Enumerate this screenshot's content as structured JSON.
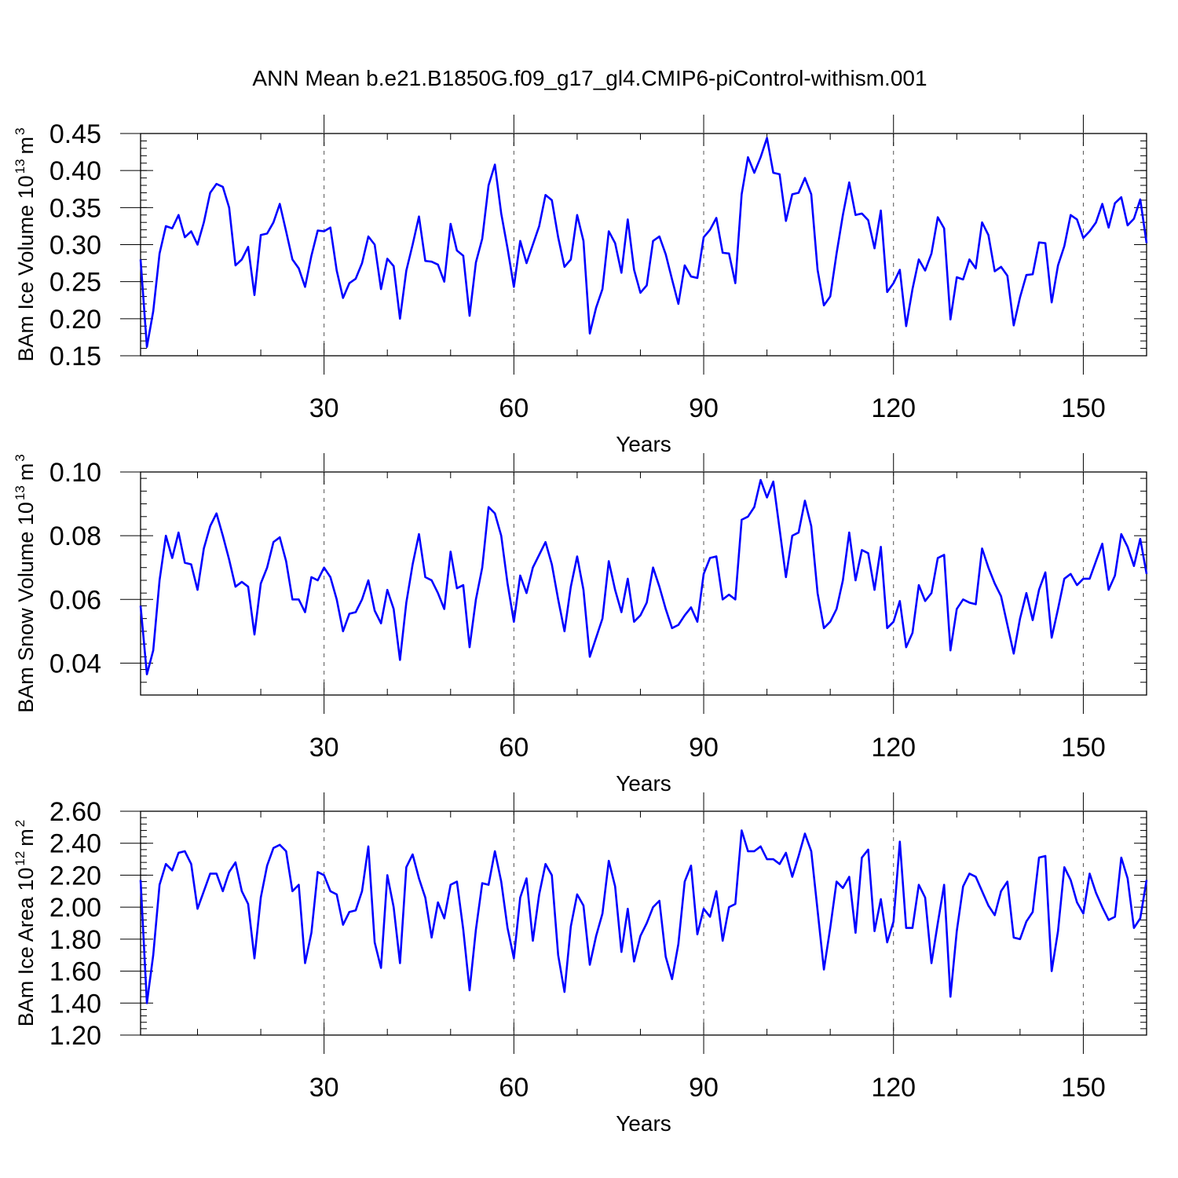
{
  "figure": {
    "title": "ANN Mean b.e21.B1850G.f09_g17_gl4.CMIP6-piControl-withism.001",
    "line_color": "#0000ff"
  },
  "chart_data": [
    {
      "type": "line",
      "title": "",
      "xlabel": "Years",
      "ylabel": "BAm Ice Volume 10",
      "ylabel_exp": "13",
      "ylabel_unit": "m",
      "ylabel_unit_exp": "3",
      "xlim": [
        1,
        160
      ],
      "ylim": [
        0.15,
        0.45
      ],
      "xticks": [
        30,
        60,
        90,
        120,
        150
      ],
      "xtick_labels": [
        "30",
        "60",
        "90",
        "120",
        "150"
      ],
      "yticks": [
        0.15,
        0.2,
        0.25,
        0.3,
        0.35,
        0.4,
        0.45
      ],
      "ytick_labels": [
        "0.15",
        "0.20",
        "0.25",
        "0.30",
        "0.35",
        "0.40",
        "0.45"
      ],
      "grid": "dashed vertical at x ticks",
      "series": [
        {
          "color": "#0000ff",
          "values": [
            0.28,
            0.162,
            0.21,
            0.288,
            0.325,
            0.322,
            0.34,
            0.31,
            0.318,
            0.3,
            0.33,
            0.37,
            0.382,
            0.378,
            0.35,
            0.272,
            0.28,
            0.297,
            0.232,
            0.313,
            0.315,
            0.33,
            0.355,
            0.318,
            0.28,
            0.268,
            0.243,
            0.285,
            0.319,
            0.318,
            0.323,
            0.265,
            0.228,
            0.248,
            0.254,
            0.275,
            0.311,
            0.3,
            0.24,
            0.281,
            0.271,
            0.2,
            0.265,
            0.3,
            0.338,
            0.278,
            0.277,
            0.273,
            0.25,
            0.328,
            0.292,
            0.285,
            0.204,
            0.276,
            0.308,
            0.38,
            0.408,
            0.342,
            0.295,
            0.243,
            0.305,
            0.275,
            0.3,
            0.325,
            0.367,
            0.36,
            0.31,
            0.27,
            0.28,
            0.34,
            0.305,
            0.18,
            0.215,
            0.24,
            0.318,
            0.302,
            0.262,
            0.334,
            0.266,
            0.235,
            0.245,
            0.305,
            0.311,
            0.287,
            0.253,
            0.22,
            0.272,
            0.257,
            0.255,
            0.31,
            0.32,
            0.336,
            0.289,
            0.288,
            0.248,
            0.368,
            0.418,
            0.397,
            0.418,
            0.444,
            0.397,
            0.395,
            0.332,
            0.368,
            0.37,
            0.39,
            0.368,
            0.266,
            0.218,
            0.23,
            0.288,
            0.34,
            0.384,
            0.34,
            0.342,
            0.333,
            0.295,
            0.346,
            0.236,
            0.248,
            0.266,
            0.19,
            0.24,
            0.28,
            0.265,
            0.288,
            0.337,
            0.322,
            0.199,
            0.256,
            0.253,
            0.28,
            0.268,
            0.33,
            0.313,
            0.264,
            0.27,
            0.258,
            0.191,
            0.229,
            0.259,
            0.26,
            0.303,
            0.302,
            0.222,
            0.272,
            0.298,
            0.34,
            0.334,
            0.309,
            0.318,
            0.33,
            0.355,
            0.323,
            0.356,
            0.364,
            0.326,
            0.335,
            0.361,
            0.302
          ]
        }
      ]
    },
    {
      "type": "line",
      "title": "",
      "xlabel": "Years",
      "ylabel": "BAm Snow Volume 10",
      "ylabel_exp": "13",
      "ylabel_unit": "m",
      "ylabel_unit_exp": "3",
      "xlim": [
        1,
        160
      ],
      "ylim": [
        0.03,
        0.1
      ],
      "xticks": [
        30,
        60,
        90,
        120,
        150
      ],
      "xtick_labels": [
        "30",
        "60",
        "90",
        "120",
        "150"
      ],
      "yticks": [
        0.04,
        0.06,
        0.08,
        0.1
      ],
      "ytick_labels": [
        "0.04",
        "0.06",
        "0.08",
        "0.10"
      ],
      "grid": "dashed vertical at x ticks",
      "series": [
        {
          "color": "#0000ff",
          "values": [
            0.058,
            0.0365,
            0.044,
            0.066,
            0.08,
            0.073,
            0.081,
            0.0715,
            0.071,
            0.063,
            0.076,
            0.083,
            0.087,
            0.08,
            0.0725,
            0.064,
            0.0655,
            0.064,
            0.049,
            0.065,
            0.07,
            0.078,
            0.0795,
            0.072,
            0.06,
            0.06,
            0.056,
            0.067,
            0.066,
            0.07,
            0.067,
            0.06,
            0.05,
            0.0555,
            0.056,
            0.06,
            0.066,
            0.0565,
            0.0525,
            0.063,
            0.057,
            0.041,
            0.059,
            0.071,
            0.0805,
            0.067,
            0.066,
            0.062,
            0.057,
            0.075,
            0.0635,
            0.0645,
            0.045,
            0.06,
            0.07,
            0.089,
            0.087,
            0.08,
            0.065,
            0.053,
            0.0675,
            0.062,
            0.07,
            0.074,
            0.078,
            0.071,
            0.06,
            0.05,
            0.064,
            0.0735,
            0.063,
            0.042,
            0.048,
            0.054,
            0.072,
            0.063,
            0.056,
            0.0665,
            0.053,
            0.055,
            0.059,
            0.07,
            0.064,
            0.057,
            0.051,
            0.052,
            0.055,
            0.0575,
            0.053,
            0.068,
            0.073,
            0.0735,
            0.06,
            0.0615,
            0.06,
            0.085,
            0.086,
            0.089,
            0.0975,
            0.092,
            0.097,
            0.082,
            0.067,
            0.08,
            0.081,
            0.091,
            0.083,
            0.062,
            0.051,
            0.053,
            0.057,
            0.066,
            0.081,
            0.066,
            0.0755,
            0.0745,
            0.063,
            0.0765,
            0.051,
            0.053,
            0.0595,
            0.045,
            0.0495,
            0.0645,
            0.0595,
            0.062,
            0.073,
            0.074,
            0.044,
            0.057,
            0.06,
            0.059,
            0.0585,
            0.076,
            0.07,
            0.065,
            0.061,
            0.052,
            0.043,
            0.054,
            0.062,
            0.0535,
            0.063,
            0.0685,
            0.048,
            0.057,
            0.0665,
            0.068,
            0.0645,
            0.0665,
            0.0665,
            0.072,
            0.0775,
            0.063,
            0.0675,
            0.0805,
            0.0765,
            0.0705,
            0.079,
            0.068
          ]
        }
      ]
    },
    {
      "type": "line",
      "title": "",
      "xlabel": "Years",
      "ylabel": "BAm Ice Area 10",
      "ylabel_exp": "12",
      "ylabel_unit": "m",
      "ylabel_unit_exp": "2",
      "xlim": [
        1,
        160
      ],
      "ylim": [
        1.2,
        2.6
      ],
      "xticks": [
        30,
        60,
        90,
        120,
        150
      ],
      "xtick_labels": [
        "30",
        "60",
        "90",
        "120",
        "150"
      ],
      "yticks": [
        1.2,
        1.4,
        1.6,
        1.8,
        2.0,
        2.2,
        2.4,
        2.6
      ],
      "ytick_labels": [
        "1.20",
        "1.40",
        "1.60",
        "1.80",
        "2.00",
        "2.20",
        "2.40",
        "2.60"
      ],
      "grid": "dashed vertical at x ticks",
      "series": [
        {
          "color": "#0000ff",
          "values": [
            2.17,
            1.4,
            1.7,
            2.14,
            2.27,
            2.23,
            2.34,
            2.35,
            2.27,
            1.99,
            2.1,
            2.21,
            2.21,
            2.1,
            2.22,
            2.28,
            2.1,
            2.02,
            1.68,
            2.06,
            2.26,
            2.37,
            2.39,
            2.35,
            2.1,
            2.14,
            1.65,
            1.84,
            2.22,
            2.2,
            2.1,
            2.08,
            1.89,
            1.97,
            1.98,
            2.1,
            2.38,
            1.78,
            1.62,
            2.2,
            2.0,
            1.65,
            2.25,
            2.33,
            2.18,
            2.06,
            1.81,
            2.03,
            1.93,
            2.14,
            2.16,
            1.86,
            1.48,
            1.86,
            2.15,
            2.14,
            2.35,
            2.16,
            1.87,
            1.68,
            2.06,
            2.18,
            1.79,
            2.08,
            2.27,
            2.2,
            1.7,
            1.47,
            1.88,
            2.08,
            2.01,
            1.64,
            1.82,
            1.96,
            2.29,
            2.13,
            1.72,
            1.99,
            1.66,
            1.82,
            1.9,
            2.0,
            2.04,
            1.69,
            1.55,
            1.77,
            2.16,
            2.26,
            1.83,
            1.99,
            1.94,
            2.1,
            1.79,
            2.0,
            2.02,
            2.48,
            2.35,
            2.35,
            2.38,
            2.3,
            2.3,
            2.27,
            2.34,
            2.19,
            2.32,
            2.46,
            2.35,
            1.98,
            1.61,
            1.87,
            2.16,
            2.12,
            2.19,
            1.84,
            2.31,
            2.36,
            1.85,
            2.05,
            1.78,
            1.91,
            2.41,
            1.87,
            1.87,
            2.14,
            2.06,
            1.65,
            1.9,
            2.14,
            1.44,
            1.85,
            2.13,
            2.21,
            2.19,
            2.1,
            2.01,
            1.95,
            2.1,
            2.16,
            1.81,
            1.8,
            1.91,
            1.97,
            2.31,
            2.32,
            1.6,
            1.85,
            2.25,
            2.17,
            2.03,
            1.96,
            2.21,
            2.09,
            2.0,
            1.92,
            1.94,
            2.31,
            2.18,
            1.87,
            1.93,
            2.17
          ]
        }
      ]
    }
  ]
}
